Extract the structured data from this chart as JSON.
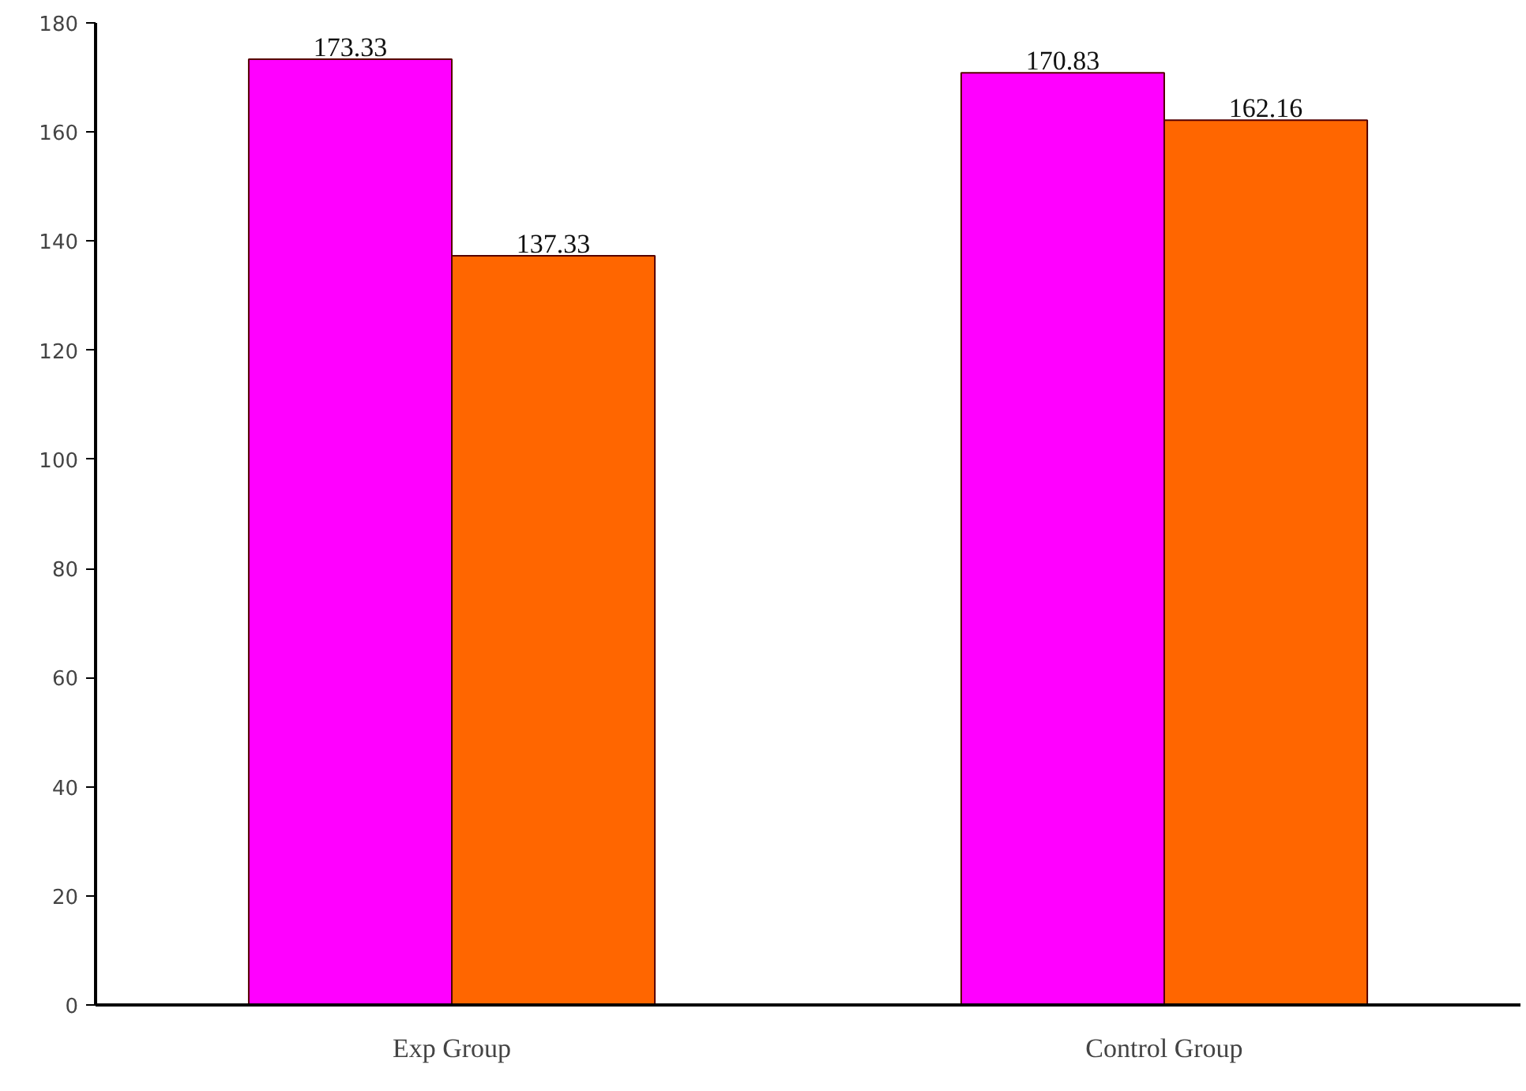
{
  "chart_data": {
    "type": "bar",
    "categories": [
      "Exp Group",
      "Control Group"
    ],
    "series": [
      {
        "color": "#ff00ff",
        "values": [
          173.33,
          170.83
        ]
      },
      {
        "color": "#ff6600",
        "values": [
          137.33,
          162.16
        ]
      }
    ],
    "ylim": [
      0,
      180
    ],
    "yticks": [
      0,
      20,
      40,
      60,
      80,
      100,
      120,
      140,
      160,
      180
    ],
    "data_labels": true,
    "grid": false
  }
}
